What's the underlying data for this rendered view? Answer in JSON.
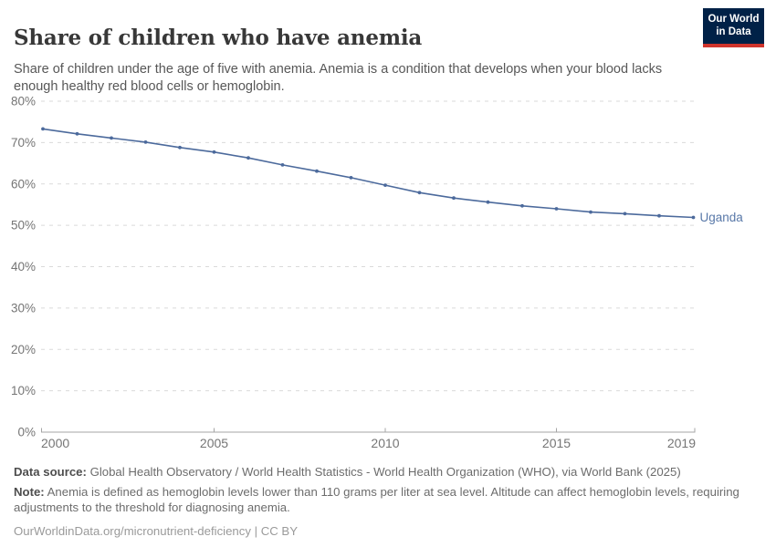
{
  "header": {
    "title": "Share of children who have anemia",
    "subtitle": "Share of children under the age of five with anemia. Anemia is a condition that develops when your blood lacks enough healthy red blood cells or hemoglobin.",
    "logo": {
      "line1": "Our World",
      "line2": "in Data",
      "bg_color": "#002147",
      "stripe_color": "#d0342c"
    }
  },
  "chart_data": {
    "type": "line",
    "title": "Share of children who have anemia",
    "entity": "Uganda",
    "x": [
      2000,
      2001,
      2002,
      2003,
      2004,
      2005,
      2006,
      2007,
      2008,
      2009,
      2010,
      2011,
      2012,
      2013,
      2014,
      2015,
      2016,
      2017,
      2018,
      2019
    ],
    "series": [
      {
        "name": "Uganda",
        "color": "#4c6a9c",
        "values": [
          73.3,
          72.1,
          71.1,
          70.1,
          68.8,
          67.7,
          66.3,
          64.6,
          63.1,
          61.5,
          59.7,
          57.9,
          56.6,
          55.6,
          54.7,
          54.0,
          53.2,
          52.8,
          52.3,
          51.9
        ]
      }
    ],
    "xlabel": "",
    "ylabel": "",
    "ylim": [
      0,
      80
    ],
    "y_ticks": [
      0,
      10,
      20,
      30,
      40,
      50,
      60,
      70,
      80
    ],
    "y_tick_suffix": "%",
    "x_ticks": [
      2000,
      2005,
      2010,
      2015,
      2019
    ],
    "grid": "horizontal-dashed",
    "legend_position": "end-of-line-label",
    "end_label": "Uganda",
    "style": {
      "line_color": "#4c6a9c",
      "end_label_color": "#5878a8",
      "grid_color": "#dadada",
      "axis_color": "#a5a5a5",
      "tick_label_color": "#757575"
    }
  },
  "footer": {
    "data_source_label": "Data source:",
    "data_source": "Global Health Observatory / World Health Statistics - World Health Organization (WHO), via World Bank (2025)",
    "note_label": "Note:",
    "note": "Anemia is defined as hemoglobin levels lower than 110 grams per liter at sea level. Altitude can affect hemoglobin levels, requiring adjustments to the threshold for diagnosing anemia.",
    "link": "OurWorldinData.org/micronutrient-deficiency | CC BY"
  }
}
